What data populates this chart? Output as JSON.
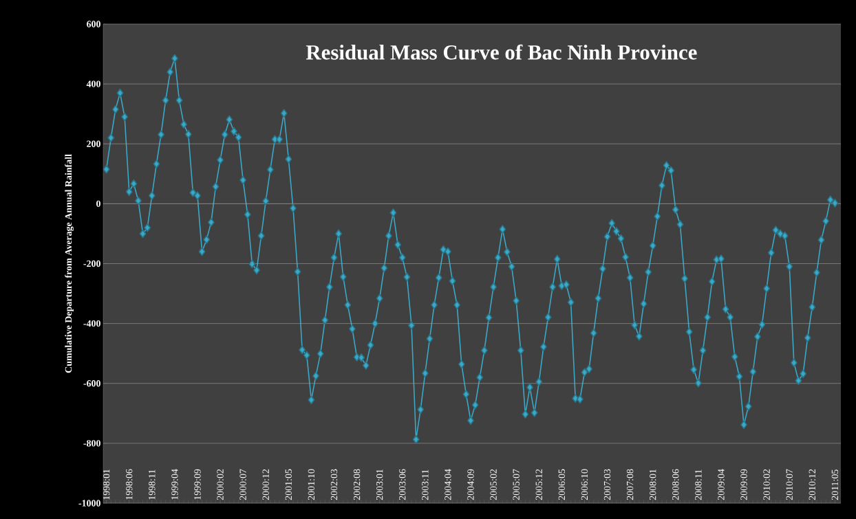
{
  "chart_data": {
    "type": "line",
    "title": "Residual Mass Curve of Bac Ninh Province",
    "ylabel": "Cumulative Departure from Average Annual Rainfall",
    "categories": [
      "1998:01",
      null,
      null,
      null,
      null,
      "1998:06",
      null,
      null,
      null,
      null,
      "1998:11",
      null,
      null,
      null,
      null,
      "1999:04",
      null,
      null,
      null,
      null,
      "1999:09",
      null,
      null,
      null,
      null,
      "2000:02",
      null,
      null,
      null,
      null,
      "2000:07",
      null,
      null,
      null,
      null,
      "2000:12",
      null,
      null,
      null,
      null,
      "2001:05",
      null,
      null,
      null,
      null,
      "2001:10",
      null,
      null,
      null,
      null,
      "2002:03",
      null,
      null,
      null,
      null,
      "2002:08",
      null,
      null,
      null,
      null,
      "2003:01",
      null,
      null,
      null,
      null,
      "2003:06",
      null,
      null,
      null,
      null,
      "2003:11",
      null,
      null,
      null,
      null,
      "2004:04",
      null,
      null,
      null,
      null,
      "2004:09",
      null,
      null,
      null,
      null,
      "2005:02",
      null,
      null,
      null,
      null,
      "2005:07",
      null,
      null,
      null,
      null,
      "2005:12",
      null,
      null,
      null,
      null,
      "2006:05",
      null,
      null,
      null,
      null,
      "2006:10",
      null,
      null,
      null,
      null,
      "2007:03",
      null,
      null,
      null,
      null,
      "2007:08",
      null,
      null,
      null,
      null,
      "2008:01",
      null,
      null,
      null,
      null,
      "2008:06",
      null,
      null,
      null,
      null,
      "2008:11",
      null,
      null,
      null,
      null,
      "2009:04",
      null,
      null,
      null,
      null,
      "2009:09",
      null,
      null,
      null,
      null,
      "2010:02",
      null,
      null,
      null,
      null,
      "2010:07",
      null,
      null,
      null,
      null,
      "2010:12",
      null,
      null,
      null,
      null,
      "2011:05"
    ],
    "series": [
      {
        "color": "#3aa8c6",
        "values": [
          115,
          220,
          315,
          370,
          290,
          40,
          67,
          10,
          -100,
          -80,
          27,
          133,
          231,
          345,
          440,
          485,
          345,
          265,
          232,
          37,
          27,
          -160,
          -120,
          -62,
          57,
          146,
          231,
          281,
          242,
          222,
          79,
          -36,
          -201,
          -222,
          -107,
          9,
          114,
          215,
          215,
          302,
          149,
          -15,
          -227,
          -488,
          -506,
          -655,
          -575,
          -501,
          -389,
          -278,
          -180,
          -100,
          -244,
          -338,
          -418,
          -512,
          -514,
          -540,
          -472,
          -400,
          -316,
          -215,
          -107,
          -30,
          -137,
          -180,
          -245,
          -406,
          -787,
          -687,
          -566,
          -451,
          -338,
          -247,
          -153,
          -160,
          -258,
          -338,
          -536,
          -636,
          -724,
          -672,
          -580,
          -490,
          -380,
          -278,
          -180,
          -85,
          -161,
          -210,
          -324,
          -490,
          -703,
          -613,
          -698,
          -595,
          -478,
          -379,
          -278,
          -185,
          -274,
          -270,
          -329,
          -650,
          -653,
          -563,
          -552,
          -432,
          -316,
          -217,
          -110,
          -65,
          -92,
          -116,
          -178,
          -247,
          -405,
          -443,
          -334,
          -228,
          -140,
          -42,
          61,
          128,
          111,
          -20,
          -69,
          -250,
          -428,
          -554,
          -599,
          -490,
          -379,
          -260,
          -187,
          -184,
          -352,
          -379,
          -511,
          -577,
          -738,
          -677,
          -561,
          -444,
          -403,
          -283,
          -164,
          -88,
          -100,
          -107,
          -210,
          -531,
          -591,
          -568,
          -448,
          -345,
          -230,
          -121,
          -58,
          13,
          2
        ]
      }
    ],
    "ylim": [
      -1000,
      600
    ],
    "yticks": [
      -1000,
      -800,
      -600,
      -400,
      -200,
      0,
      200,
      400,
      600
    ],
    "grid": "y",
    "marker": "diamond",
    "line_style": "solid"
  }
}
